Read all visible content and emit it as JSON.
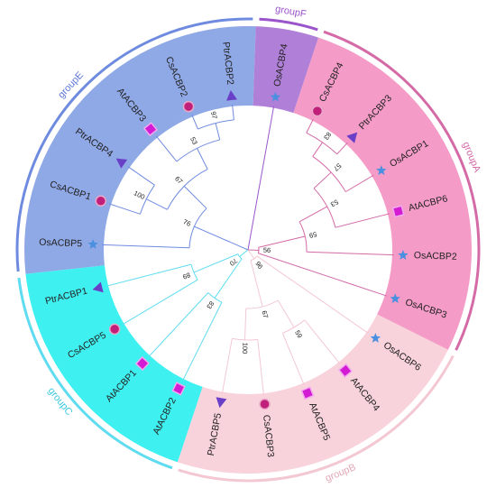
{
  "groups": [
    {
      "id": "groupE",
      "label": "groupE",
      "sector_color": "#8fa8e6",
      "ring_color": "#6f8be0",
      "label_color": "#5b77d6"
    },
    {
      "id": "groupF",
      "label": "groupF",
      "sector_color": "#b07fd8",
      "ring_color": "#9b55cc",
      "label_color": "#9b55cc"
    },
    {
      "id": "groupA",
      "label": "groupA",
      "sector_color": "#f49bc7",
      "ring_color": "#d46aa6",
      "label_color": "#d46aa6"
    },
    {
      "id": "groupB",
      "label": "groupB",
      "sector_color": "#f9d3dc",
      "ring_color": "#f3c8d3",
      "label_color": "#e4a8b8"
    },
    {
      "id": "groupC",
      "label": "groupC",
      "sector_color": "#3ff0f0",
      "ring_color": "#5fdcf0",
      "label_color": "#3fc8e0"
    }
  ],
  "leaves": [
    {
      "name": "OsACBP5",
      "group": "groupE",
      "marker": "star",
      "marker_color": "#4a8fe0"
    },
    {
      "name": "CsACBP1",
      "group": "groupE",
      "marker": "circle",
      "marker_color": "#c0207a"
    },
    {
      "name": "PtrACBP4",
      "group": "groupE",
      "marker": "triangle",
      "marker_color": "#6a3fc8"
    },
    {
      "name": "AtACBP3",
      "group": "groupE",
      "marker": "square",
      "marker_color": "#d21bd2"
    },
    {
      "name": "CsACBP2",
      "group": "groupE",
      "marker": "circle",
      "marker_color": "#c0207a"
    },
    {
      "name": "PtrACBP2",
      "group": "groupE",
      "marker": "triangle",
      "marker_color": "#6a3fc8"
    },
    {
      "name": "OsACBP4",
      "group": "groupF",
      "marker": "star",
      "marker_color": "#4a8fe0"
    },
    {
      "name": "CsACBP4",
      "group": "groupA",
      "marker": "circle",
      "marker_color": "#c0207a"
    },
    {
      "name": "PtrACBP3",
      "group": "groupA",
      "marker": "triangle",
      "marker_color": "#6a3fc8"
    },
    {
      "name": "OsACBP1",
      "group": "groupA",
      "marker": "star",
      "marker_color": "#4a8fe0"
    },
    {
      "name": "AtACBP6",
      "group": "groupA",
      "marker": "square",
      "marker_color": "#d21bd2"
    },
    {
      "name": "OsACBP2",
      "group": "groupA",
      "marker": "star",
      "marker_color": "#4a8fe0"
    },
    {
      "name": "OsACBP3",
      "group": "groupA",
      "marker": "star",
      "marker_color": "#4a8fe0"
    },
    {
      "name": "OsACBP6",
      "group": "groupB",
      "marker": "star",
      "marker_color": "#4a8fe0"
    },
    {
      "name": "AtACBP4",
      "group": "groupB",
      "marker": "square",
      "marker_color": "#d21bd2"
    },
    {
      "name": "AtACBP5",
      "group": "groupB",
      "marker": "square",
      "marker_color": "#d21bd2"
    },
    {
      "name": "CsACBP3",
      "group": "groupB",
      "marker": "circle",
      "marker_color": "#c0207a"
    },
    {
      "name": "PtrACBP5",
      "group": "groupB",
      "marker": "triangle",
      "marker_color": "#6a3fc8"
    },
    {
      "name": "AtACBP2",
      "group": "groupC",
      "marker": "square",
      "marker_color": "#d21bd2"
    },
    {
      "name": "AtACBP1",
      "group": "groupC",
      "marker": "square",
      "marker_color": "#d21bd2"
    },
    {
      "name": "CsACBP5",
      "group": "groupC",
      "marker": "circle",
      "marker_color": "#c0207a"
    },
    {
      "name": "PtrACBP1",
      "group": "groupC",
      "marker": "triangle",
      "marker_color": "#6a3fc8"
    }
  ],
  "bootstrap_values": [
    "100",
    "67",
    "97",
    "53",
    "76",
    "89",
    "70",
    "83",
    "83",
    "57",
    "53",
    "59",
    "56",
    "100",
    "67",
    "59",
    "96"
  ],
  "tree": {
    "group": "root",
    "children": [
      {
        "group": "groupE",
        "children": [
          {
            "group": "groupE",
            "boot": "76",
            "children": [
              {
                "leaf": "OsACBP5"
              },
              {
                "group": "groupE",
                "boot": "67",
                "children": [
                  {
                    "group": "groupE",
                    "boot": "100",
                    "children": [
                      {
                        "leaf": "CsACBP1"
                      },
                      {
                        "leaf": "PtrACBP4"
                      }
                    ]
                  },
                  {
                    "group": "groupE",
                    "boot": "53",
                    "children": [
                      {
                        "leaf": "AtACBP3"
                      },
                      {
                        "group": "groupE",
                        "boot": "97",
                        "children": [
                          {
                            "leaf": "CsACBP2"
                          },
                          {
                            "leaf": "PtrACBP2"
                          }
                        ]
                      }
                    ]
                  }
                ]
              }
            ]
          }
        ]
      },
      {
        "group": "groupF",
        "children": [
          {
            "leaf": "OsACBP4"
          }
        ]
      },
      {
        "group": "groupA",
        "boot": "56",
        "children": [
          {
            "leaf": "OsACBP3"
          },
          {
            "group": "groupA",
            "boot": "59",
            "children": [
              {
                "leaf": "OsACBP2"
              },
              {
                "group": "groupA",
                "boot": "53",
                "children": [
                  {
                    "leaf": "AtACBP6"
                  },
                  {
                    "group": "groupA",
                    "boot": "57",
                    "children": [
                      {
                        "leaf": "OsACBP1"
                      },
                      {
                        "group": "groupA",
                        "boot": "83",
                        "children": [
                          {
                            "leaf": "PtrACBP3"
                          },
                          {
                            "leaf": "CsACBP4"
                          }
                        ]
                      }
                    ]
                  }
                ]
              }
            ]
          }
        ]
      },
      {
        "group": "groupB",
        "boot": "96",
        "children": [
          {
            "leaf": "OsACBP6"
          },
          {
            "group": "groupB",
            "boot": "67",
            "children": [
              {
                "group": "groupB",
                "boot": "59",
                "children": [
                  {
                    "leaf": "AtACBP4"
                  },
                  {
                    "leaf": "AtACBP5"
                  }
                ]
              },
              {
                "group": "groupB",
                "boot": "100",
                "children": [
                  {
                    "leaf": "CsACBP3"
                  },
                  {
                    "leaf": "PtrACBP5"
                  }
                ]
              }
            ]
          }
        ]
      },
      {
        "group": "groupC",
        "boot": "70",
        "children": [
          {
            "group": "groupC",
            "boot": "83",
            "children": [
              {
                "leaf": "AtACBP2"
              },
              {
                "leaf": "AtACBP1"
              }
            ]
          },
          {
            "group": "groupC",
            "boot": "89",
            "children": [
              {
                "leaf": "CsACBP5"
              },
              {
                "leaf": "PtrACBP1"
              }
            ]
          }
        ]
      }
    ]
  }
}
